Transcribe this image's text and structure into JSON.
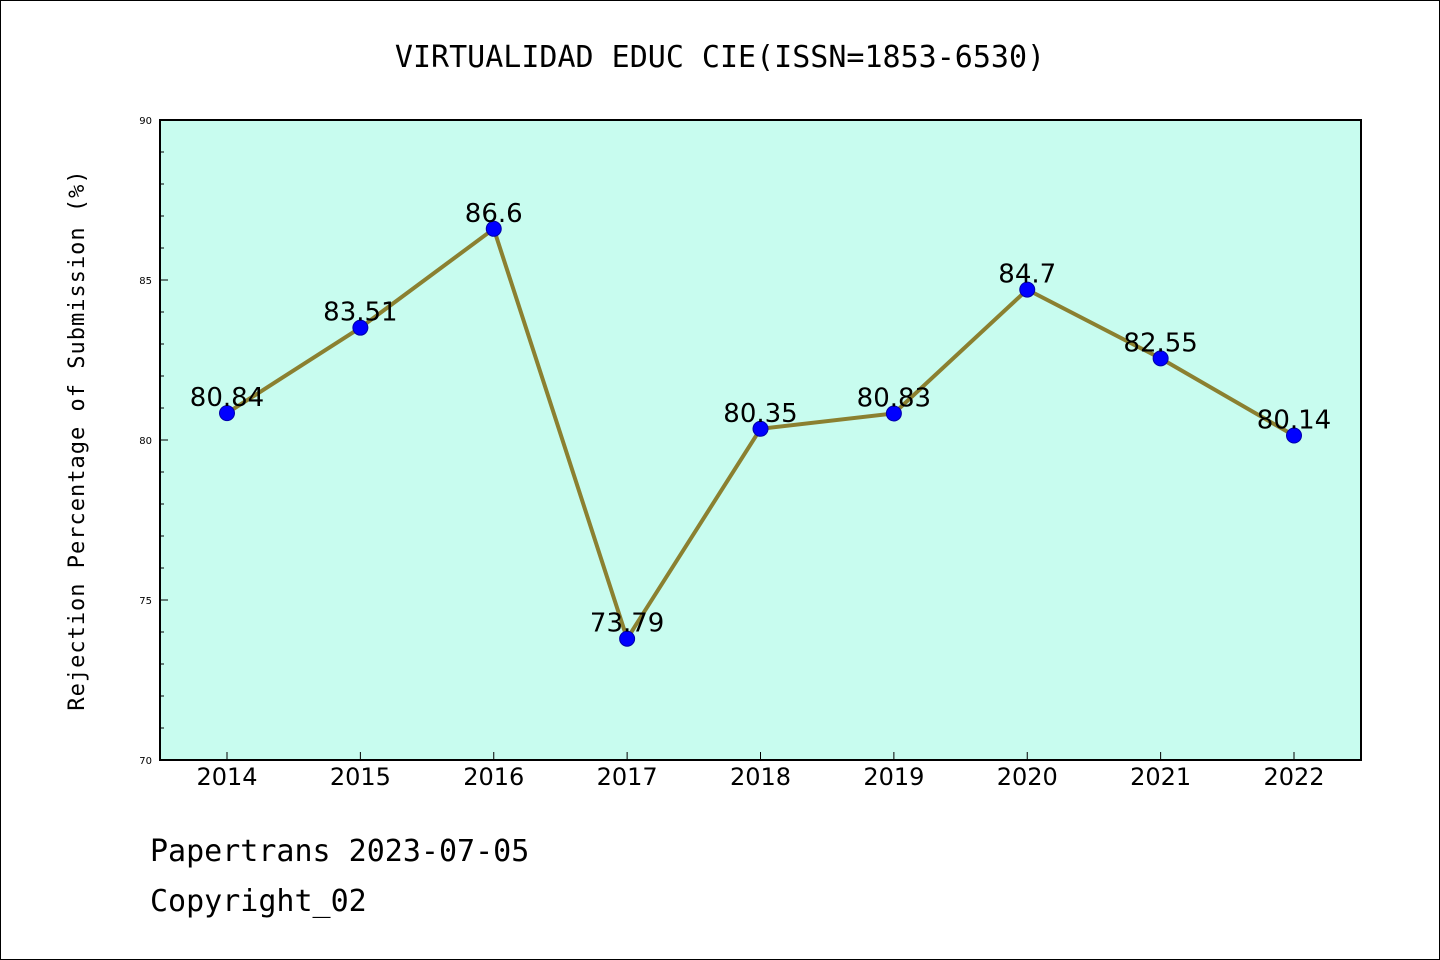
{
  "chart_data": {
    "type": "line",
    "title": "VIRTUALIDAD EDUC CIE(ISSN=1853-6530)",
    "xlabel": "",
    "ylabel": "Rejection Percentage of Submission (%)",
    "categories": [
      "2014",
      "2015",
      "2016",
      "2017",
      "2018",
      "2019",
      "2020",
      "2021",
      "2022"
    ],
    "values": [
      80.84,
      83.51,
      86.6,
      73.79,
      80.35,
      80.83,
      84.7,
      82.55,
      80.14
    ],
    "data_labels": [
      "80.84",
      "83.51",
      "86.6",
      "73.79",
      "80.35",
      "80.83",
      "84.7",
      "82.55",
      "80.14"
    ],
    "ylim": [
      70,
      90
    ],
    "yticks": [
      70,
      75,
      80,
      85,
      90
    ],
    "grid": false,
    "colors": {
      "plot_background": "#c8fcef",
      "line": "#8b8030",
      "marker": "#0000ff"
    }
  },
  "footer": {
    "date_line": "Papertrans 2023-07-05",
    "copyright_line": "Copyright_02"
  }
}
